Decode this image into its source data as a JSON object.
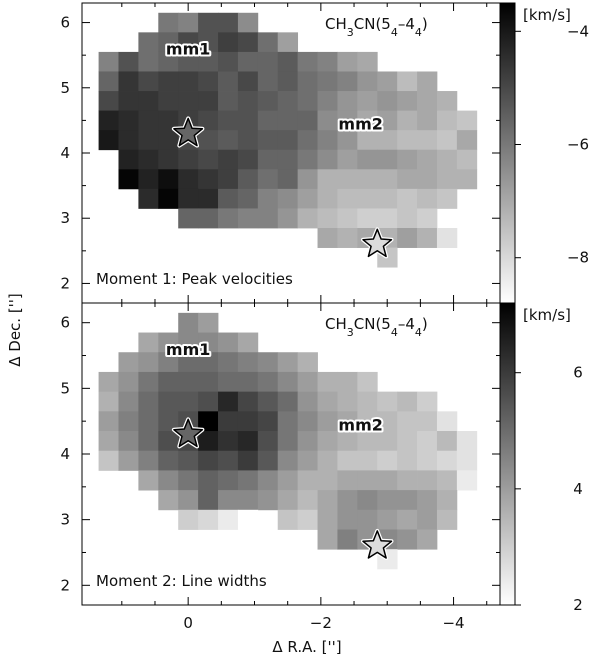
{
  "figure": {
    "ylabel": "Δ Dec. ['']",
    "xlabel": "Δ R.A. ['']"
  },
  "chart_data": [
    {
      "type": "heatmap",
      "panel": "top",
      "molecule_label": "CH₃CN(5₄–4₄)",
      "annotation": "Moment 1: Peak velocities",
      "colorbar_label": "[km/s]",
      "colorbar_range": [
        -8.8,
        -3.5
      ],
      "colorbar_ticks": [
        -4,
        -6,
        -8
      ],
      "colormap": "white-to-black",
      "xlim": [
        1.6,
        -4.7
      ],
      "ylim": [
        1.7,
        6.3
      ],
      "x_ticks": [
        0,
        -2,
        -4
      ],
      "x_tick_labels": [
        "0",
        "−2",
        "−4"
      ],
      "y_ticks": [
        2,
        3,
        4,
        5,
        6
      ],
      "y_tick_labels": [
        "2",
        "3",
        "4",
        "5",
        "6"
      ],
      "grid": false,
      "pixel_size": 0.3,
      "ra_offsets": [
        1.2,
        0.9,
        0.6,
        0.3,
        0.0,
        -0.3,
        -0.6,
        -0.9,
        -1.2,
        -1.5,
        -1.8,
        -2.1,
        -2.4,
        -2.7,
        -3.0,
        -3.3,
        -3.6,
        -3.9,
        -4.2
      ],
      "dec_offsets": [
        6.0,
        5.7,
        5.4,
        5.1,
        4.8,
        4.5,
        4.2,
        3.9,
        3.6,
        3.3,
        3.0,
        2.7,
        2.4
      ],
      "values": [
        [
          null,
          null,
          null,
          -6.0,
          -6.2,
          -5.2,
          -5.2,
          -6.4,
          null,
          null,
          null,
          null,
          null,
          null,
          null,
          null,
          null,
          null,
          null
        ],
        [
          null,
          null,
          -5.8,
          -5.6,
          -5.0,
          -5.2,
          -4.8,
          -5.0,
          -5.8,
          -6.8,
          null,
          null,
          null,
          null,
          null,
          null,
          null,
          null,
          null
        ],
        [
          -6.2,
          -5.2,
          -5.8,
          -5.6,
          -5.4,
          -5.4,
          -5.2,
          -5.6,
          -5.6,
          -5.4,
          -6.0,
          -6.2,
          -6.8,
          -7.0,
          null,
          null,
          null,
          null,
          null
        ],
        [
          -5.6,
          -4.6,
          -5.0,
          -4.8,
          -4.8,
          -5.0,
          -5.4,
          -5.0,
          -5.6,
          -5.4,
          -5.8,
          -6.0,
          -6.2,
          -6.6,
          -6.8,
          -7.4,
          -7.0,
          null,
          null
        ],
        [
          -5.0,
          -4.6,
          -4.6,
          -4.8,
          -4.8,
          -4.8,
          -5.4,
          -5.2,
          -5.4,
          -5.6,
          -5.8,
          -6.2,
          -6.6,
          -6.8,
          -6.6,
          -6.8,
          -7.0,
          -7.2,
          null
        ],
        [
          -4.2,
          -4.4,
          -4.6,
          -4.6,
          -4.8,
          -5.0,
          -5.2,
          -5.2,
          -5.6,
          -5.6,
          -5.6,
          -6.4,
          -6.6,
          -7.0,
          -6.8,
          -7.2,
          -7.0,
          -7.4,
          -7.6
        ],
        [
          -4.0,
          -4.4,
          -4.6,
          -4.6,
          -5.0,
          -5.2,
          -5.4,
          -5.2,
          -5.4,
          -5.4,
          -5.8,
          -6.2,
          -6.6,
          -7.2,
          -7.2,
          -7.4,
          -7.4,
          -7.6,
          -7.0
        ],
        [
          null,
          -4.2,
          -4.4,
          -4.6,
          -4.8,
          -5.0,
          -4.8,
          -5.0,
          -5.6,
          -5.6,
          -6.0,
          -6.4,
          -6.8,
          -6.6,
          -6.6,
          -6.8,
          -7.0,
          -7.2,
          -7.4
        ],
        [
          null,
          -3.6,
          -4.2,
          -3.8,
          -4.4,
          -4.6,
          -4.8,
          -5.4,
          -5.8,
          -5.6,
          -6.6,
          -7.2,
          -7.2,
          -7.2,
          -7.2,
          -7.0,
          -7.0,
          -7.2,
          -7.2
        ],
        [
          null,
          null,
          -4.4,
          -3.6,
          -4.4,
          -4.4,
          -5.4,
          -5.6,
          -6.2,
          -6.4,
          -6.8,
          -7.2,
          -7.4,
          -7.4,
          -7.4,
          -7.6,
          -7.4,
          -7.6,
          null
        ],
        [
          null,
          null,
          null,
          null,
          -5.6,
          -5.6,
          -6.0,
          -6.2,
          -6.2,
          -6.6,
          -7.2,
          -7.4,
          -7.6,
          -7.8,
          -7.8,
          -7.6,
          -7.8,
          null,
          null
        ],
        [
          null,
          null,
          null,
          null,
          null,
          null,
          null,
          null,
          null,
          null,
          null,
          -7.0,
          -7.2,
          -7.0,
          -7.2,
          -6.8,
          -7.2,
          -8.2,
          null
        ],
        [
          null,
          null,
          null,
          null,
          null,
          null,
          null,
          null,
          null,
          null,
          null,
          null,
          null,
          null,
          -7.6,
          null,
          null,
          null,
          null
        ]
      ],
      "sources": [
        {
          "label": "mm1",
          "x": 0.0,
          "y": 5.6
        },
        {
          "label": "mm2",
          "x": -2.6,
          "y": 4.45
        }
      ],
      "stars": [
        {
          "x": 0.0,
          "y": 4.3
        },
        {
          "x": -2.85,
          "y": 2.6
        }
      ]
    },
    {
      "type": "heatmap",
      "panel": "bottom",
      "molecule_label": "CH₃CN(5₄–4₄)",
      "annotation": "Moment 2: Line widths",
      "colorbar_label": "[km/s]",
      "colorbar_range": [
        2.0,
        7.2
      ],
      "colorbar_ticks": [
        6,
        4,
        2
      ],
      "colormap": "white-to-black",
      "xlim": [
        1.6,
        -4.7
      ],
      "ylim": [
        1.7,
        6.3
      ],
      "x_ticks": [
        0,
        -2,
        -4
      ],
      "x_tick_labels": [
        "0",
        "−2",
        "−4"
      ],
      "y_ticks": [
        2,
        3,
        4,
        5,
        6
      ],
      "y_tick_labels": [
        "2",
        "3",
        "4",
        "5",
        "6"
      ],
      "grid": false,
      "pixel_size": 0.3,
      "ra_offsets": [
        1.2,
        0.9,
        0.6,
        0.3,
        0.0,
        -0.3,
        -0.6,
        -0.9,
        -1.2,
        -1.5,
        -1.8,
        -2.1,
        -2.4,
        -2.7,
        -3.0,
        -3.3,
        -3.6,
        -3.9,
        -4.2
      ],
      "dec_offsets": [
        6.0,
        5.7,
        5.4,
        5.1,
        4.8,
        4.5,
        4.2,
        3.9,
        3.6,
        3.3,
        3.0,
        2.7,
        2.4
      ],
      "values": [
        [
          null,
          null,
          null,
          null,
          4.4,
          4.0,
          null,
          null,
          null,
          null,
          null,
          null,
          null,
          null,
          null,
          null,
          null,
          null,
          null
        ],
        [
          null,
          null,
          3.8,
          4.2,
          4.4,
          4.4,
          4.2,
          3.8,
          null,
          null,
          null,
          null,
          null,
          null,
          null,
          null,
          null,
          null,
          null
        ],
        [
          null,
          4.0,
          4.2,
          4.6,
          5.0,
          5.0,
          4.8,
          4.6,
          4.4,
          4.0,
          3.6,
          null,
          null,
          null,
          null,
          null,
          null,
          null,
          null
        ],
        [
          3.8,
          4.2,
          4.8,
          5.2,
          5.2,
          5.2,
          5.0,
          5.0,
          4.8,
          4.4,
          4.0,
          3.6,
          3.6,
          3.2,
          null,
          null,
          null,
          null,
          null
        ],
        [
          3.6,
          4.4,
          5.0,
          5.4,
          5.4,
          5.6,
          6.4,
          5.8,
          5.4,
          5.0,
          4.2,
          3.8,
          3.6,
          3.4,
          3.2,
          3.4,
          3.0,
          null,
          null
        ],
        [
          4.0,
          4.6,
          5.0,
          5.4,
          5.6,
          7.2,
          6.0,
          6.0,
          5.8,
          4.8,
          4.4,
          4.0,
          3.8,
          3.4,
          3.4,
          3.2,
          3.2,
          2.6,
          null
        ],
        [
          3.8,
          4.4,
          5.0,
          5.6,
          5.8,
          6.6,
          6.2,
          6.4,
          5.6,
          4.8,
          4.2,
          3.8,
          3.6,
          3.4,
          3.4,
          3.2,
          3.0,
          3.4,
          2.6
        ],
        [
          3.2,
          4.0,
          4.6,
          5.2,
          5.4,
          5.8,
          5.6,
          6.0,
          5.4,
          4.4,
          4.0,
          3.6,
          3.2,
          3.2,
          3.0,
          3.2,
          3.0,
          2.8,
          2.6
        ],
        [
          null,
          null,
          3.8,
          4.4,
          4.8,
          5.2,
          5.0,
          4.8,
          4.4,
          4.0,
          3.6,
          3.6,
          3.8,
          3.8,
          3.8,
          3.6,
          3.6,
          3.4,
          2.4
        ],
        [
          null,
          null,
          null,
          3.8,
          4.2,
          5.2,
          4.4,
          4.4,
          4.2,
          3.8,
          3.4,
          3.8,
          4.2,
          4.4,
          4.2,
          4.2,
          4.0,
          3.6,
          null
        ],
        [
          null,
          null,
          null,
          null,
          3.0,
          2.8,
          2.4,
          2.0,
          null,
          3.2,
          3.0,
          3.8,
          4.2,
          4.2,
          4.0,
          3.8,
          4.0,
          3.4,
          null
        ],
        [
          null,
          null,
          null,
          null,
          null,
          null,
          null,
          null,
          null,
          null,
          null,
          3.8,
          4.6,
          4.2,
          4.4,
          4.2,
          3.8,
          null,
          null
        ],
        [
          null,
          null,
          null,
          null,
          null,
          null,
          null,
          null,
          null,
          null,
          null,
          null,
          null,
          null,
          2.4,
          null,
          null,
          null,
          null
        ]
      ],
      "sources": [
        {
          "label": "mm1",
          "x": 0.0,
          "y": 5.6
        },
        {
          "label": "mm2",
          "x": -2.6,
          "y": 4.45
        }
      ],
      "stars": [
        {
          "x": 0.0,
          "y": 4.3
        },
        {
          "x": -2.85,
          "y": 2.6
        }
      ]
    }
  ]
}
